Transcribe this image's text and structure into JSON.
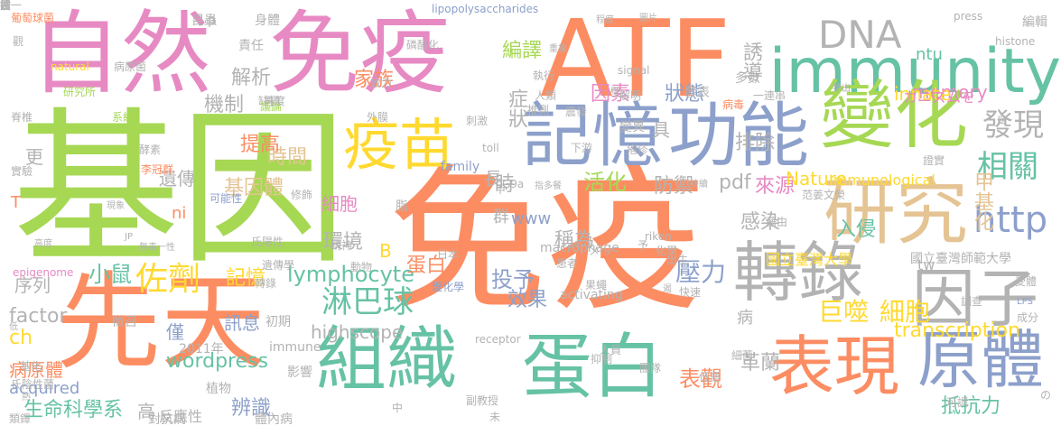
{
  "palette": {
    "green": "#a6d854",
    "orange": "#fc8d62",
    "blue": "#8da0cb",
    "pink": "#e78ac3",
    "yellow": "#ffd92f",
    "teal": "#66c2a5",
    "tan": "#e5c494",
    "gray": "#b3b3b3"
  },
  "words": [
    {
      "text": "基因",
      "color": "#a6d854"
    },
    {
      "text": "免疫",
      "color": "#fc8d62"
    },
    {
      "text": "自然",
      "color": "#e78ac3"
    },
    {
      "text": "免疫",
      "color": "#e78ac3"
    },
    {
      "text": "ATF",
      "color": "#fc8d62"
    },
    {
      "text": "immunity",
      "color": "#66c2a5"
    },
    {
      "text": "先天",
      "color": "#fc8d62"
    },
    {
      "text": "記憶",
      "color": "#8da0cb"
    },
    {
      "text": "功能",
      "color": "#8da0cb"
    },
    {
      "text": "變化",
      "color": "#a6d854"
    },
    {
      "text": "疫苗",
      "color": "#ffd92f"
    },
    {
      "text": "研究",
      "color": "#e5c494"
    },
    {
      "text": "轉錄",
      "color": "#b3b3b3"
    },
    {
      "text": "因子",
      "color": "#b3b3b3"
    },
    {
      "text": "組織",
      "color": "#66c2a5"
    },
    {
      "text": "蛋白",
      "color": "#66c2a5"
    },
    {
      "text": "表現",
      "color": "#fc8d62"
    },
    {
      "text": "原體",
      "color": "#8da0cb"
    },
    {
      "text": "DNA",
      "color": "#b3b3b3"
    },
    {
      "text": "發現",
      "color": "#b3b3b3"
    },
    {
      "text": "相關",
      "color": "#66c2a5"
    },
    {
      "text": "http",
      "color": "#8da0cb"
    },
    {
      "text": "佐劑",
      "color": "#ffd92f"
    },
    {
      "text": "淋巴球",
      "color": "#66c2a5"
    },
    {
      "text": "lymphocyte",
      "color": "#66c2a5"
    },
    {
      "text": "小鼠",
      "color": "#66c2a5"
    },
    {
      "text": "時間",
      "color": "#e5c494"
    },
    {
      "text": "提高",
      "color": "#fc8d62"
    },
    {
      "text": "基因體",
      "color": "#e5c494"
    },
    {
      "text": "記憶",
      "color": "#ffd92f"
    },
    {
      "text": "序列",
      "color": "#b3b3b3"
    },
    {
      "text": "factor",
      "color": "#b3b3b3"
    },
    {
      "text": "ch",
      "color": "#ffd92f"
    },
    {
      "text": "病原體",
      "color": "#fc8d62"
    },
    {
      "text": "生命科學系",
      "color": "#66c2a5"
    },
    {
      "text": "highscope",
      "color": "#b3b3b3"
    },
    {
      "text": "wordpress",
      "color": "#66c2a5"
    },
    {
      "text": "壓力",
      "color": "#8da0cb"
    },
    {
      "text": "巨噬",
      "color": "#ffd92f"
    },
    {
      "text": "細胞",
      "color": "#ffd92f"
    },
    {
      "text": "transcription",
      "color": "#ffd92f"
    },
    {
      "text": "甲基化",
      "color": "#e5c494"
    },
    {
      "text": "抵抗力",
      "color": "#66c2a5"
    },
    {
      "text": "表觀",
      "color": "#fc8d62"
    },
    {
      "text": "辨識",
      "color": "#8da0cb"
    },
    {
      "text": "投予",
      "color": "#8da0cb"
    },
    {
      "text": "活化",
      "color": "#a6d854"
    },
    {
      "text": "家族",
      "color": "#fc8d62"
    },
    {
      "text": "memory",
      "color": "#e78ac3"
    },
    {
      "text": "innate",
      "color": "#ffd92f"
    },
    {
      "text": "因素",
      "color": "#e78ac3"
    },
    {
      "text": "誘導",
      "color": "#b3b3b3"
    },
    {
      "text": "解析",
      "color": "#b3b3b3"
    },
    {
      "text": "機制",
      "color": "#b3b3b3"
    },
    {
      "text": "編譯",
      "color": "#a6d854"
    },
    {
      "text": "症狀",
      "color": "#b3b3b3"
    },
    {
      "text": "狀態",
      "color": "#8da0cb"
    },
    {
      "text": "排除",
      "color": "#b3b3b3"
    },
    {
      "text": "防禦",
      "color": "#b3b3b3"
    },
    {
      "text": "來源",
      "color": "#e78ac3"
    },
    {
      "text": "pdf",
      "color": "#b3b3b3"
    },
    {
      "text": "Nature",
      "color": "#ffd92f"
    },
    {
      "text": "入侵",
      "color": "#66c2a5"
    },
    {
      "text": "感染",
      "color": "#b3b3b3"
    },
    {
      "text": "稱為",
      "color": "#b3b3b3"
    },
    {
      "text": "環境",
      "color": "#b3b3b3"
    },
    {
      "text": "遺傳",
      "color": "#b3b3b3"
    },
    {
      "text": "細胞",
      "color": "#e78ac3"
    },
    {
      "text": "www",
      "color": "#8da0cb"
    },
    {
      "text": "效果",
      "color": "#8da0cb"
    },
    {
      "text": "訊息",
      "color": "#8da0cb"
    },
    {
      "text": "革蘭",
      "color": "#b3b3b3"
    },
    {
      "text": "Immunological",
      "color": "#ffd92f"
    },
    {
      "text": "tw",
      "color": "#b3b3b3"
    },
    {
      "text": "ntu",
      "color": "#66c2a5"
    },
    {
      "text": "カニズムを",
      "color": "#e78ac3"
    },
    {
      "text": "國立臺灣大學",
      "color": "#ffd92f"
    },
    {
      "text": "國立臺灣師範大學",
      "color": "#b3b3b3"
    },
    {
      "text": "蛋白",
      "color": "#fc8d62"
    },
    {
      "text": "高",
      "color": "#b3b3b3"
    },
    {
      "text": "反應性",
      "color": "#b3b3b3"
    },
    {
      "text": "對抗病",
      "color": "#b3b3b3"
    },
    {
      "text": "體內病",
      "color": "#b3b3b3"
    },
    {
      "text": "植物",
      "color": "#b3b3b3"
    },
    {
      "text": "影響",
      "color": "#b3b3b3"
    },
    {
      "text": "immune",
      "color": "#b3b3b3"
    },
    {
      "text": "初期",
      "color": "#b3b3b3"
    },
    {
      "text": "僅",
      "color": "#8da0cb"
    },
    {
      "text": "徵召",
      "color": "#b3b3b3"
    },
    {
      "text": "macrophage",
      "color": "#b3b3b3"
    },
    {
      "text": "activating",
      "color": "#b3b3b3"
    },
    {
      "text": "群",
      "color": "#b3b3b3"
    },
    {
      "text": "長",
      "color": "#b3b3b3"
    },
    {
      "text": "具",
      "color": "#b3b3b3"
    },
    {
      "text": "時",
      "color": "#b3b3b3"
    },
    {
      "text": "更",
      "color": "#b3b3b3"
    },
    {
      "text": "B",
      "color": "#ffd92f"
    },
    {
      "text": "T",
      "color": "#fc8d62"
    },
    {
      "text": "ni",
      "color": "#fc8d62"
    },
    {
      "text": "病",
      "color": "#b3b3b3"
    },
    {
      "text": "p",
      "color": "#b3b3b3"
    },
    {
      "text": "LPS",
      "color": "#8da0cb"
    },
    {
      "text": "2011年",
      "color": "#b3b3b3"
    },
    {
      "text": "acquired",
      "color": "#8da0cb"
    },
    {
      "text": "epigenome",
      "color": "#e78ac3"
    },
    {
      "text": "natural",
      "color": "#ffd92f"
    },
    {
      "text": "研究所",
      "color": "#a6d854"
    },
    {
      "text": "family",
      "color": "#8da0cb"
    },
    {
      "text": "histone",
      "color": "#b3b3b3"
    },
    {
      "text": "lipopolysaccharides",
      "color": "#8da0cb"
    },
    {
      "text": "receptor",
      "color": "#b3b3b3"
    },
    {
      "text": "signal",
      "color": "#b3b3b3"
    },
    {
      "text": "riken",
      "color": "#b3b3b3"
    },
    {
      "text": "G9a",
      "color": "#b3b3b3"
    },
    {
      "text": "toll",
      "color": "#b3b3b3"
    },
    {
      "text": "press",
      "color": "#b3b3b3"
    },
    {
      "text": "葡萄球菌",
      "color": "#fc8d62"
    },
    {
      "text": "觀",
      "color": "#b3b3b3"
    },
    {
      "text": "身體",
      "color": "#b3b3b3"
    },
    {
      "text": "昆蟲",
      "color": "#b3b3b3"
    },
    {
      "text": "編輯",
      "color": "#b3b3b3"
    },
    {
      "text": "責任",
      "color": "#b3b3b3"
    },
    {
      "text": "病原菌",
      "color": "#b3b3b3"
    },
    {
      "text": "缺損",
      "color": "#b3b3b3"
    },
    {
      "text": "執行",
      "color": "#b3b3b3"
    },
    {
      "text": "人類",
      "color": "#b3b3b3"
    },
    {
      "text": "解明",
      "color": "#b3b3b3"
    },
    {
      "text": "發表",
      "color": "#b3b3b3"
    },
    {
      "text": "病毒",
      "color": "#fc8d62"
    },
    {
      "text": "多數",
      "color": "#b3b3b3"
    },
    {
      "text": "脊椎",
      "color": "#b3b3b3"
    },
    {
      "text": "系統",
      "color": "#a6d854"
    },
    {
      "text": "議論",
      "color": "#a6d854"
    },
    {
      "text": "再度",
      "color": "#b3b3b3"
    },
    {
      "text": "外膜",
      "color": "#b3b3b3"
    },
    {
      "text": "變異",
      "color": "#b3b3b3"
    },
    {
      "text": "刺激",
      "color": "#b3b3b3"
    },
    {
      "text": "推測",
      "color": "#b3b3b3"
    },
    {
      "text": "震發",
      "color": "#b3b3b3"
    },
    {
      "text": "酵素",
      "color": "#b3b3b3"
    },
    {
      "text": "李冠群",
      "color": "#fc8d62"
    },
    {
      "text": "實驗",
      "color": "#b3b3b3"
    },
    {
      "text": "可能性",
      "color": "#8da0cb"
    },
    {
      "text": "修飾",
      "color": "#b3b3b3"
    },
    {
      "text": "現象",
      "color": "#b3b3b3"
    },
    {
      "text": "高度",
      "color": "#b3b3b3"
    },
    {
      "text": "無毒一性",
      "color": "#b3b3b3"
    },
    {
      "text": "氏陽性",
      "color": "#b3b3b3"
    },
    {
      "text": "遺傳學",
      "color": "#b3b3b3"
    },
    {
      "text": "轉錄",
      "color": "#b3b3b3"
    },
    {
      "text": "精神",
      "color": "#b3b3b3"
    },
    {
      "text": "日本",
      "color": "#b3b3b3"
    },
    {
      "text": "理化學",
      "color": "#8da0cb"
    },
    {
      "text": "動物",
      "color": "#b3b3b3"
    },
    {
      "text": "患者",
      "color": "#b3b3b3"
    },
    {
      "text": "化學",
      "color": "#b3b3b3"
    },
    {
      "text": "出生",
      "color": "#b3b3b3"
    },
    {
      "text": "快速",
      "color": "#b3b3b3"
    },
    {
      "text": "果蠅",
      "color": "#b3b3b3"
    },
    {
      "text": "人員",
      "color": "#b3b3b3"
    },
    {
      "text": "抑制",
      "color": "#b3b3b3"
    },
    {
      "text": "團隊",
      "color": "#b3b3b3"
    },
    {
      "text": "副教授",
      "color": "#b3b3b3"
    },
    {
      "text": "藉由",
      "color": "#b3b3b3"
    },
    {
      "text": "范姜文榮",
      "color": "#b3b3b3"
    },
    {
      "text": "受體",
      "color": "#b3b3b3"
    },
    {
      "text": "調查",
      "color": "#b3b3b3"
    },
    {
      "text": "成分",
      "color": "#b3b3b3"
    },
    {
      "text": "可調",
      "color": "#b3b3b3"
    },
    {
      "text": "細菌",
      "color": "#b3b3b3"
    },
    {
      "text": "基化",
      "color": "#b3b3b3"
    },
    {
      "text": "氏陰性菌",
      "color": "#b3b3b3"
    },
    {
      "text": "熱",
      "color": "#b3b3b3"
    },
    {
      "text": "類鐸",
      "color": "#b3b3b3"
    },
    {
      "text": "の",
      "color": "#b3b3b3"
    },
    {
      "text": "中",
      "color": "#b3b3b3"
    },
    {
      "text": "未",
      "color": "#b3b3b3"
    },
    {
      "text": "脂",
      "color": "#b3b3b3"
    },
    {
      "text": "低",
      "color": "#b3b3b3"
    },
    {
      "text": "JP",
      "color": "#b3b3b3"
    },
    {
      "text": "メ",
      "color": "#b3b3b3"
    },
    {
      "text": "下游",
      "color": "#b3b3b3"
    },
    {
      "text": "疱疹",
      "color": "#b3b3b3"
    },
    {
      "text": "證實",
      "color": "#b3b3b3"
    },
    {
      "text": "一連串",
      "color": "#b3b3b3"
    },
    {
      "text": "持續",
      "color": "#b3b3b3"
    },
    {
      "text": "程度",
      "color": "#b3b3b3"
    },
    {
      "text": "重複",
      "color": "#b3b3b3"
    },
    {
      "text": "圖片",
      "color": "#b3b3b3"
    },
    {
      "text": "磷酸化",
      "color": "#b3b3b3"
    },
    {
      "text": "效力",
      "color": "#b3b3b3"
    },
    {
      "text": "特出",
      "color": "#b3b3b3"
    },
    {
      "text": "壁",
      "color": "#b3b3b3"
    },
    {
      "text": "受",
      "color": "#b3b3b3"
    },
    {
      "text": "低語",
      "color": "#b3b3b3"
    },
    {
      "text": "指多餐",
      "color": "#b3b3b3"
    },
    {
      "text": "甲",
      "color": "#b3b3b3"
    },
    {
      "text": "予",
      "color": "#b3b3b3"
    },
    {
      "text": "遏",
      "color": "#b3b3b3"
    },
    {
      "text": "誘",
      "color": "#b3b3b3"
    },
    {
      "text": "體",
      "color": "#b3b3b3"
    },
    {
      "text": "投",
      "color": "#b3b3b3"
    },
    {
      "text": "置一",
      "color": "#b3b3b3"
    }
  ]
}
